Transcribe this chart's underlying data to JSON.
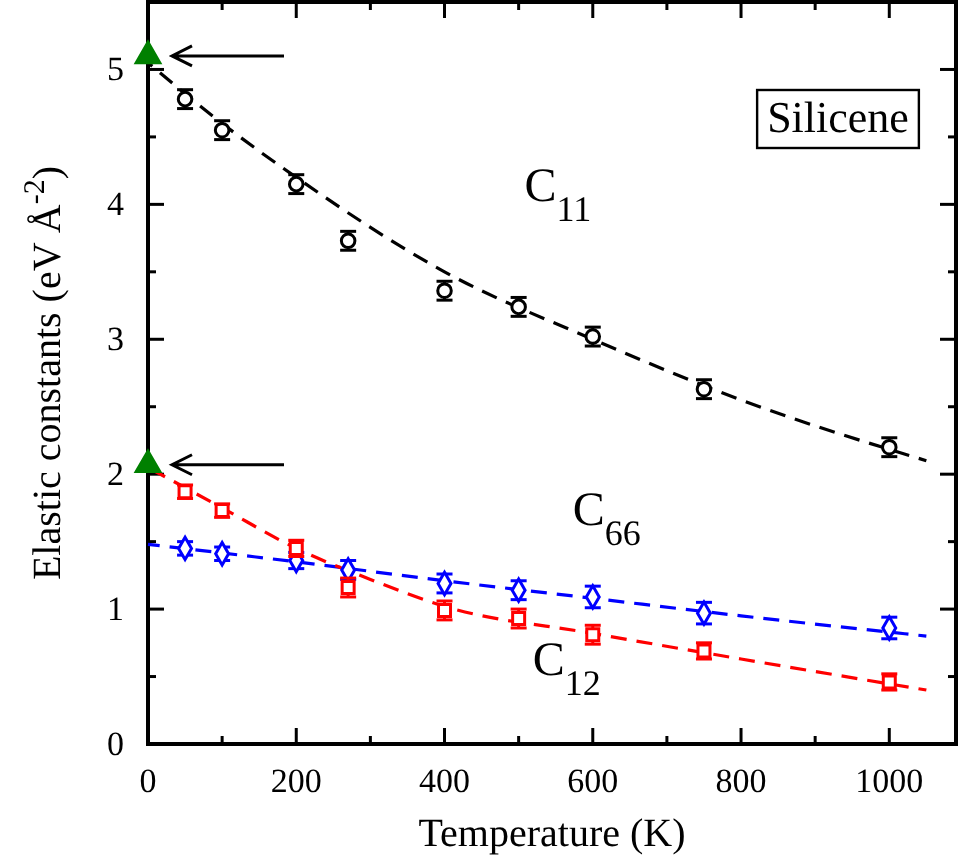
{
  "chart_data": {
    "type": "scatter",
    "xlabel": "Temperature  (K)",
    "ylabel": "Elastic constants (eV Å$^{-2}$)",
    "annotations": [
      "Silicene"
    ],
    "xlim": [
      0,
      1090
    ],
    "ylim": [
      0,
      5.5
    ],
    "xticks": [
      0,
      {
        "value": 100,
        "label": null
      },
      200,
      {
        "value": 300,
        "label": null
      },
      400,
      {
        "value": 500,
        "label": null
      },
      600,
      {
        "value": 700,
        "label": null
      },
      800,
      {
        "value": 900,
        "label": null
      },
      1000
    ],
    "yticks": [
      0,
      {
        "value": 0.5,
        "label": null
      },
      1,
      {
        "value": 1.5,
        "label": null
      },
      2,
      {
        "value": 2.5,
        "label": null
      },
      3,
      {
        "value": 3.5,
        "label": null
      },
      4,
      {
        "value": 4.5,
        "label": null
      },
      5
    ],
    "grid": false,
    "series": [
      {
        "type": "line",
        "color": "#000000",
        "line_style": "dashed",
        "marker": "none",
        "x": [
          0,
          100,
          200,
          400,
          600,
          800,
          1050
        ],
        "values": [
          5.05,
          4.6,
          4.2,
          3.5,
          3.0,
          2.55,
          2.1
        ]
      },
      {
        "type": "line",
        "color": "#0000ff",
        "line_style": "dashed",
        "marker": "none",
        "x": [
          0,
          200,
          400,
          600,
          800,
          1050
        ],
        "values": [
          1.48,
          1.35,
          1.21,
          1.08,
          0.95,
          0.8
        ]
      },
      {
        "type": "line",
        "color": "#ff0000",
        "line_style": "dashed",
        "marker": "none",
        "x": [
          0,
          100,
          200,
          300,
          400,
          600,
          800,
          1050
        ],
        "values": [
          2.05,
          1.75,
          1.45,
          1.22,
          1.02,
          0.82,
          0.63,
          0.4
        ]
      },
      {
        "name": "C$_{11}$",
        "color": "#000000",
        "marker": "circle",
        "x": [
          50,
          100,
          200,
          270,
          400,
          500,
          600,
          750,
          1000
        ],
        "values": [
          4.78,
          4.55,
          4.15,
          3.73,
          3.36,
          3.24,
          3.02,
          2.63,
          2.2
        ],
        "errors": [
          0.07,
          0.07,
          0.07,
          0.07,
          0.07,
          0.07,
          0.07,
          0.07,
          0.07
        ]
      },
      {
        "name": "C$_{66}$",
        "color": "#0000ff",
        "marker": "diamond",
        "x": [
          50,
          100,
          200,
          270,
          400,
          500,
          600,
          750,
          1000
        ],
        "values": [
          1.45,
          1.41,
          1.36,
          1.29,
          1.19,
          1.14,
          1.09,
          0.97,
          0.86
        ],
        "errors": [
          0.05,
          0.05,
          0.06,
          0.07,
          0.07,
          0.07,
          0.08,
          0.08,
          0.08
        ]
      },
      {
        "name": "C$_{12}$",
        "color": "#ff0000",
        "marker": "square",
        "x": [
          50,
          100,
          200,
          270,
          400,
          500,
          600,
          750,
          1000
        ],
        "values": [
          1.87,
          1.73,
          1.45,
          1.16,
          0.99,
          0.93,
          0.81,
          0.69,
          0.46
        ],
        "errors": [
          0.05,
          0.05,
          0.06,
          0.07,
          0.07,
          0.07,
          0.07,
          0.06,
          0.06
        ]
      },
      {
        "color": "#008000",
        "marker": "triangle",
        "x": [
          0,
          0
        ],
        "values": [
          5.1,
          2.07
        ]
      }
    ]
  }
}
